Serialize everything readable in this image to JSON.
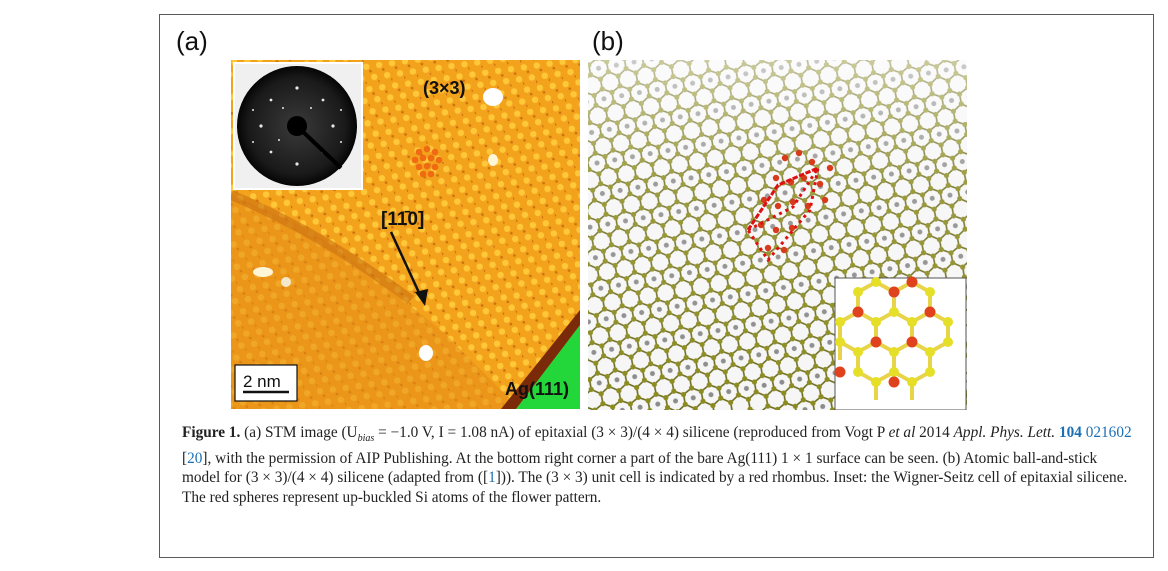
{
  "figure": {
    "panel_a_label": "(a)",
    "panel_b_label": "(b)",
    "stm": {
      "reconstruction_label": "(3×3)",
      "direction_label": "[11̄0]",
      "scale_bar_label": "2 nm",
      "substrate_label": "Ag(111)"
    },
    "caption": {
      "figure_label": "Figure 1.",
      "p1": " (a) STM image (U",
      "p1_sub": "bias",
      "p2": " = −1.0 V, I = 1.08 nA) of epitaxial (3 × 3)/(4 × 4) silicene (reproduced from Vogt P ",
      "p3_it": "et al",
      "p4": " 2014 ",
      "p5_it": "Appl. Phys. Lett.",
      "p6_vol": " 104",
      "p7_page": " 021602",
      "p8": " [",
      "p9_ref": "20",
      "p10": "], with the permission of AIP Publishing. At the bottom right corner a part of the bare Ag(111) 1 × 1 surface can be seen. (b) Atomic ball-and-stick model for (3 × 3)/(4 × 4) silicene (adapted from ([",
      "p11_ref": "1",
      "p12": "])). The (3 × 3) unit cell is indicated by a red rhombus. Inset: the Wigner-Seitz cell of epitaxial silicene. The red spheres represent up-buckled Si atoms of the flower pattern."
    }
  }
}
